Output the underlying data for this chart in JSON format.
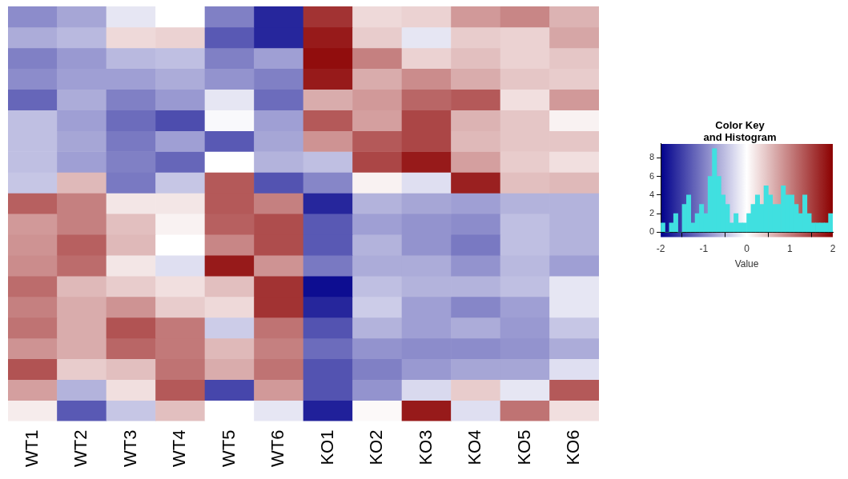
{
  "chart_data": [
    {
      "type": "heatmap",
      "categories": [
        "WT1",
        "WT2",
        "WT3",
        "WT4",
        "WT5",
        "WT6",
        "KO1",
        "KO2",
        "KO3",
        "KO4",
        "KO5",
        "KO6"
      ],
      "y_categories": [
        null,
        null,
        null,
        null,
        null,
        null,
        null,
        null,
        null,
        null,
        null,
        null,
        null,
        null,
        null,
        null,
        null,
        null,
        null,
        null
      ],
      "cells": [
        [
          -0.9,
          -0.7,
          -0.2,
          0,
          -1.0,
          -1.7,
          1.6,
          0.3,
          0.35,
          0.8,
          0.95,
          0.6
        ],
        [
          -0.65,
          -0.55,
          0.3,
          0.35,
          -1.3,
          -1.7,
          1.8,
          0.4,
          -0.2,
          0.4,
          0.35,
          0.7
        ],
        [
          -1.0,
          -0.8,
          -0.55,
          -0.5,
          -1.0,
          -0.75,
          1.9,
          1.0,
          0.35,
          0.5,
          0.35,
          0.45
        ],
        [
          -0.9,
          -0.75,
          -0.75,
          -0.65,
          -0.85,
          -1.0,
          1.8,
          0.65,
          0.9,
          0.65,
          0.45,
          0.4
        ],
        [
          -1.2,
          -0.65,
          -1.0,
          -0.8,
          -0.2,
          -1.15,
          0.65,
          0.8,
          1.2,
          1.3,
          0.25,
          0.8
        ],
        [
          -0.5,
          -0.75,
          -1.15,
          -1.4,
          -0.05,
          -0.75,
          1.3,
          0.75,
          1.45,
          0.6,
          0.45,
          0.1
        ],
        [
          -0.5,
          -0.7,
          -1.05,
          -0.75,
          -1.3,
          -0.7,
          0.85,
          1.3,
          1.45,
          0.55,
          0.45,
          0.45
        ],
        [
          -0.5,
          -0.75,
          -1.0,
          -1.2,
          0,
          -0.6,
          -0.5,
          1.45,
          1.8,
          0.75,
          0.4,
          0.25
        ],
        [
          -0.45,
          0.55,
          -1.05,
          -0.45,
          1.3,
          -1.35,
          -0.95,
          0.1,
          -0.25,
          1.75,
          0.5,
          0.55
        ],
        [
          1.25,
          1.0,
          0.2,
          0.2,
          1.3,
          1.0,
          -1.7,
          -0.6,
          -0.7,
          -0.75,
          -0.6,
          -0.6
        ],
        [
          0.8,
          1.0,
          0.5,
          0.1,
          1.25,
          1.4,
          -1.3,
          -0.75,
          -0.85,
          -0.9,
          -0.5,
          -0.6
        ],
        [
          0.85,
          1.25,
          0.55,
          0,
          0.95,
          1.4,
          -1.3,
          -0.6,
          -0.85,
          -1.05,
          -0.5,
          -0.6
        ],
        [
          0.9,
          1.15,
          0.2,
          -0.25,
          1.8,
          0.85,
          -1.05,
          -0.65,
          -0.65,
          -0.85,
          -0.55,
          -0.75
        ],
        [
          1.15,
          0.55,
          0.4,
          0.25,
          0.5,
          1.6,
          -1.9,
          -0.5,
          -0.6,
          -0.6,
          -0.5,
          -0.2
        ],
        [
          1.0,
          0.65,
          0.85,
          0.4,
          0.3,
          1.6,
          -1.7,
          -0.4,
          -0.75,
          -0.95,
          -0.75,
          -0.2
        ],
        [
          1.1,
          0.65,
          1.35,
          1.05,
          -0.4,
          1.1,
          -1.35,
          -0.6,
          -0.75,
          -0.65,
          -0.8,
          -0.45
        ],
        [
          0.85,
          0.65,
          1.2,
          1.05,
          0.55,
          1.0,
          -1.15,
          -0.85,
          -0.9,
          -0.9,
          -0.85,
          -0.65
        ],
        [
          1.35,
          0.4,
          0.5,
          1.1,
          0.65,
          1.1,
          -1.35,
          -1.0,
          -0.8,
          -0.7,
          -0.7,
          -0.25
        ],
        [
          0.75,
          -0.6,
          0.25,
          1.3,
          -1.45,
          0.8,
          -1.35,
          -0.85,
          -0.3,
          0.4,
          -0.2,
          1.3
        ],
        [
          0.15,
          -1.3,
          -0.45,
          0.5,
          0,
          -0.2,
          -1.75,
          0.05,
          1.8,
          -0.25,
          1.1,
          0.25
        ]
      ],
      "clim": [
        -2,
        2
      ],
      "cticks": [
        -2,
        -1,
        0,
        1,
        2
      ],
      "clabel": "Value",
      "tick_labels": "x"
    },
    {
      "type": "histogram",
      "title": "Color Key\nand Histogram",
      "color": "#40e0e0",
      "tick_labels": "y",
      "bins": [
        -2.0,
        -1.9,
        -1.8,
        -1.7,
        -1.6,
        -1.5,
        -1.4,
        -1.3,
        -1.2,
        -1.1,
        -1.0,
        -0.9,
        -0.8,
        -0.7,
        -0.6,
        -0.5,
        -0.4,
        -0.3,
        -0.2,
        -0.1,
        0.0,
        0.1,
        0.2,
        0.3,
        0.4,
        0.5,
        0.6,
        0.7,
        0.8,
        0.9,
        1.0,
        1.1,
        1.2,
        1.3,
        1.4,
        1.5,
        1.6,
        1.7,
        1.8,
        1.9,
        2.0
      ],
      "values": [
        1,
        0,
        1,
        2,
        0,
        3,
        4,
        1,
        2,
        3,
        2,
        6,
        9,
        6,
        4,
        3,
        1,
        2,
        1,
        1,
        2,
        3,
        4,
        3,
        5,
        4,
        3,
        3,
        5,
        4,
        4,
        3,
        2,
        4,
        2,
        1,
        1,
        1,
        1,
        2
      ],
      "xlim": [
        -2,
        2
      ],
      "xticks": [
        -2,
        -1,
        0,
        1,
        2
      ],
      "ylim": [
        0,
        9.5
      ],
      "yticks": [
        0,
        2,
        4,
        6,
        8
      ]
    }
  ]
}
